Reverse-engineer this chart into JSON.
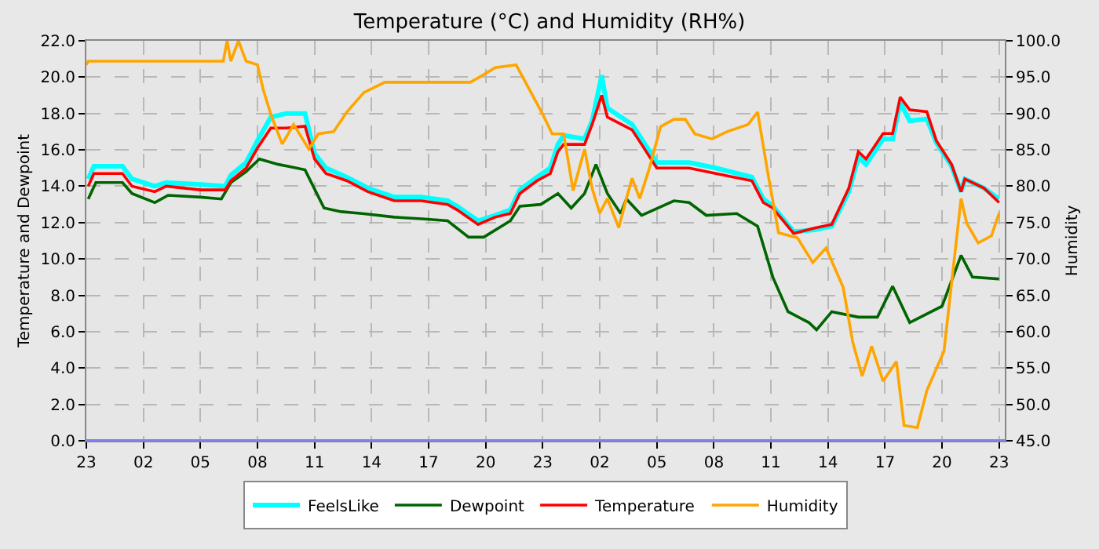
{
  "chart_data": {
    "type": "line",
    "title": "Temperature (°C) and Humidity (RH%)",
    "ylabel": "Temperature and Dewpoint",
    "y2label": "Humidity",
    "xlim": [
      "--01-01T23:00",
      "--01-03T23:18"
    ],
    "xticks": [
      {
        "value": "--01-01T23:00",
        "label": "23"
      },
      {
        "value": "--01-02T02:00",
        "label": "02"
      },
      {
        "value": "--01-02T05:00",
        "label": "05"
      },
      {
        "value": "--01-02T08:00",
        "label": "08"
      },
      {
        "value": "--01-02T11:00",
        "label": "11"
      },
      {
        "value": "--01-02T14:00",
        "label": "14"
      },
      {
        "value": "--01-02T17:00",
        "label": "17"
      },
      {
        "value": "--01-02T20:00",
        "label": "20"
      },
      {
        "value": "--01-02T23:00",
        "label": "23"
      },
      {
        "value": "--01-03T02:00",
        "label": "02"
      },
      {
        "value": "--01-03T05:00",
        "label": "05"
      },
      {
        "value": "--01-03T08:00",
        "label": "08"
      },
      {
        "value": "--01-03T11:00",
        "label": "11"
      },
      {
        "value": "--01-03T14:00",
        "label": "14"
      },
      {
        "value": "--01-03T17:00",
        "label": "17"
      },
      {
        "value": "--01-03T20:00",
        "label": "20"
      },
      {
        "value": "--01-03T23:00",
        "label": "23"
      }
    ],
    "ylim": [
      0,
      22
    ],
    "yticks": [
      {
        "value": 0,
        "label": "0.0"
      },
      {
        "value": 2,
        "label": "2.0"
      },
      {
        "value": 4,
        "label": "4.0"
      },
      {
        "value": 6,
        "label": "6.0"
      },
      {
        "value": 8,
        "label": "8.0"
      },
      {
        "value": 10,
        "label": "10.0"
      },
      {
        "value": 12,
        "label": "12.0"
      },
      {
        "value": 14,
        "label": "14.0"
      },
      {
        "value": 16,
        "label": "16.0"
      },
      {
        "value": 18,
        "label": "18.0"
      },
      {
        "value": 20,
        "label": "20.0"
      },
      {
        "value": 22,
        "label": "22.0"
      }
    ],
    "y2lim": [
      45,
      100
    ],
    "y2ticks": [
      {
        "value": 45,
        "label": "45.0"
      },
      {
        "value": 50,
        "label": "50.0"
      },
      {
        "value": 55,
        "label": "55.0"
      },
      {
        "value": 60,
        "label": "60.0"
      },
      {
        "value": 65,
        "label": "65.0"
      },
      {
        "value": 70,
        "label": "70.0"
      },
      {
        "value": 75,
        "label": "75.0"
      },
      {
        "value": 80,
        "label": "80.0"
      },
      {
        "value": 85,
        "label": "85.0"
      },
      {
        "value": 90,
        "label": "90.0"
      },
      {
        "value": 95,
        "label": "95.0"
      },
      {
        "value": 100,
        "label": "100.0"
      }
    ],
    "grid": true,
    "legend": "bottom",
    "marker": "none",
    "line_style": "solid",
    "ref_lines": [
      {
        "axis": "y",
        "value": 0,
        "color": "#7f7fff"
      }
    ],
    "series": [
      {
        "name": "FeelsLike",
        "color": "#00ffff",
        "x": [
          "--01-01T23:06",
          "--01-01T23:24",
          "--01-02T00:54",
          "--01-02T01:24",
          "--01-02T02:36",
          "--01-02T03:12",
          "--01-02T05:00",
          "--01-02T06:18",
          "--01-02T06:36",
          "--01-02T07:24",
          "--01-02T08:00",
          "--01-02T08:42",
          "--01-02T09:30",
          "--01-02T10:30",
          "--01-02T11:00",
          "--01-02T11:36",
          "--01-02T12:42",
          "--01-02T13:48",
          "--01-02T15:12",
          "--01-02T16:36",
          "--01-02T18:00",
          "--01-02T18:30",
          "--01-02T19:36",
          "--01-02T20:30",
          "--01-02T21:18",
          "--01-02T21:48",
          "--01-02T22:42",
          "--01-02T23:24",
          "--01-02T23:48",
          "--01-03T00:06",
          "--01-03T01:12",
          "--01-03T01:36",
          "--01-03T02:06",
          "--01-03T02:24",
          "--01-03T03:42",
          "--01-03T04:12",
          "--01-03T05:00",
          "--01-03T06:42",
          "--01-03T08:06",
          "--01-03T10:00",
          "--01-03T10:36",
          "--01-03T11:06",
          "--01-03T12:12",
          "--01-03T13:18",
          "--01-03T14:12",
          "--01-03T15:06",
          "--01-03T15:36",
          "--01-03T16:00",
          "--01-03T16:54",
          "--01-03T17:24",
          "--01-03T17:48",
          "--01-03T18:18",
          "--01-03T19:12",
          "--01-03T19:42",
          "--01-03T20:30",
          "--01-03T21:00",
          "--01-03T21:12",
          "--01-03T22:12",
          "--01-03T23:00"
        ],
        "values": [
          14.4,
          15.1,
          15.1,
          14.4,
          14.0,
          14.2,
          14.1,
          14.0,
          14.6,
          15.3,
          16.5,
          17.8,
          18.0,
          18.0,
          15.8,
          15.0,
          14.5,
          13.9,
          13.4,
          13.4,
          13.2,
          12.9,
          12.1,
          12.4,
          12.7,
          13.8,
          14.5,
          15.0,
          16.3,
          16.8,
          16.6,
          17.6,
          20.1,
          18.3,
          17.4,
          16.6,
          15.3,
          15.3,
          15.0,
          14.5,
          13.3,
          12.9,
          11.5,
          11.6,
          11.8,
          13.7,
          15.6,
          15.2,
          16.6,
          16.6,
          18.6,
          17.6,
          17.7,
          16.4,
          15.1,
          13.7,
          14.4,
          13.9,
          13.3
        ]
      },
      {
        "name": "Dewpoint",
        "color": "#006400",
        "x": [
          "--01-01T23:06",
          "--01-01T23:30",
          "--01-02T00:54",
          "--01-02T01:24",
          "--01-02T02:36",
          "--01-02T03:18",
          "--01-02T05:00",
          "--01-02T06:06",
          "--01-02T06:36",
          "--01-02T07:24",
          "--01-02T08:06",
          "--01-02T09:06",
          "--01-02T09:36",
          "--01-02T10:30",
          "--01-02T11:30",
          "--01-02T12:24",
          "--01-02T13:30",
          "--01-02T15:12",
          "--01-02T16:48",
          "--01-02T18:00",
          "--01-02T19:06",
          "--01-02T19:54",
          "--01-02T21:18",
          "--01-02T21:48",
          "--01-02T22:54",
          "--01-02T23:48",
          "--01-03T00:30",
          "--01-03T01:12",
          "--01-03T01:48",
          "--01-03T02:24",
          "--01-03T03:06",
          "--01-03T03:24",
          "--01-03T04:12",
          "--01-03T05:54",
          "--01-03T06:42",
          "--01-03T07:36",
          "--01-03T09:12",
          "--01-03T10:18",
          "--01-03T11:06",
          "--01-03T11:54",
          "--01-03T13:00",
          "--01-03T13:24",
          "--01-03T14:12",
          "--01-03T15:36",
          "--01-03T16:36",
          "--01-03T17:24",
          "--01-03T18:18",
          "--01-03T20:00",
          "--01-03T21:00",
          "--01-03T21:36",
          "--01-03T23:00"
        ],
        "values": [
          13.3,
          14.2,
          14.2,
          13.6,
          13.1,
          13.5,
          13.4,
          13.3,
          14.2,
          14.8,
          15.5,
          15.2,
          15.1,
          14.9,
          12.8,
          12.6,
          12.5,
          12.3,
          12.2,
          12.1,
          11.2,
          11.2,
          12.1,
          12.9,
          13.0,
          13.6,
          12.8,
          13.6,
          15.2,
          13.6,
          12.5,
          13.3,
          12.4,
          13.2,
          13.1,
          12.4,
          12.5,
          11.8,
          9.0,
          7.1,
          6.5,
          6.1,
          7.1,
          6.8,
          6.8,
          8.5,
          6.5,
          7.4,
          10.2,
          9.0,
          8.9
        ]
      },
      {
        "name": "Temperature",
        "color": "#ff0000",
        "x": [
          "--01-01T23:06",
          "--01-01T23:24",
          "--01-02T00:54",
          "--01-02T01:24",
          "--01-02T02:36",
          "--01-02T03:12",
          "--01-02T05:00",
          "--01-02T06:18",
          "--01-02T06:36",
          "--01-02T07:24",
          "--01-02T08:00",
          "--01-02T08:42",
          "--01-02T09:30",
          "--01-02T10:30",
          "--01-02T11:00",
          "--01-02T11:36",
          "--01-02T12:42",
          "--01-02T13:48",
          "--01-02T15:12",
          "--01-02T16:36",
          "--01-02T18:00",
          "--01-02T18:30",
          "--01-02T19:36",
          "--01-02T20:30",
          "--01-02T21:18",
          "--01-02T21:48",
          "--01-02T22:42",
          "--01-02T23:24",
          "--01-02T23:48",
          "--01-03T00:06",
          "--01-03T01:12",
          "--01-03T01:36",
          "--01-03T02:06",
          "--01-03T02:24",
          "--01-03T03:42",
          "--01-03T04:12",
          "--01-03T05:00",
          "--01-03T06:42",
          "--01-03T08:06",
          "--01-03T10:00",
          "--01-03T10:36",
          "--01-03T11:06",
          "--01-03T12:12",
          "--01-03T13:18",
          "--01-03T14:12",
          "--01-03T15:06",
          "--01-03T15:36",
          "--01-03T16:00",
          "--01-03T16:54",
          "--01-03T17:24",
          "--01-03T17:48",
          "--01-03T18:18",
          "--01-03T19:12",
          "--01-03T19:42",
          "--01-03T20:30",
          "--01-03T21:00",
          "--01-03T21:12",
          "--01-03T22:12",
          "--01-03T23:00"
        ],
        "values": [
          14.0,
          14.7,
          14.7,
          14.0,
          13.7,
          14.0,
          13.8,
          13.8,
          14.3,
          15.0,
          16.1,
          17.2,
          17.2,
          17.3,
          15.5,
          14.7,
          14.3,
          13.7,
          13.2,
          13.2,
          13.0,
          12.7,
          11.9,
          12.3,
          12.5,
          13.6,
          14.3,
          14.7,
          15.9,
          16.3,
          16.3,
          17.4,
          19.0,
          17.8,
          17.1,
          16.3,
          15.0,
          15.0,
          14.7,
          14.3,
          13.1,
          12.8,
          11.4,
          11.7,
          11.9,
          13.9,
          15.9,
          15.5,
          16.9,
          16.9,
          18.9,
          18.2,
          18.1,
          16.5,
          15.2,
          13.7,
          14.4,
          13.9,
          13.1
        ]
      },
      {
        "name": "Humidity",
        "color": "#ffa500",
        "axis": "y2",
        "x": [
          "--01-01T23:00",
          "--01-01T23:06",
          "--01-02T06:12",
          "--01-02T06:24",
          "--01-02T06:36",
          "--01-02T07:00",
          "--01-02T07:24",
          "--01-02T08:00",
          "--01-02T08:18",
          "--01-02T08:42",
          "--01-02T09:18",
          "--01-02T09:54",
          "--01-02T10:42",
          "--01-02T11:12",
          "--01-02T12:00",
          "--01-02T12:42",
          "--01-02T13:36",
          "--01-02T14:42",
          "--01-02T19:12",
          "--01-02T19:48",
          "--01-02T20:30",
          "--01-02T21:36",
          "--01-02T22:18",
          "--01-02T23:00",
          "--01-02T23:30",
          "--01-03T00:06",
          "--01-03T00:36",
          "--01-03T01:12",
          "--01-03T01:36",
          "--01-03T02:00",
          "--01-03T02:24",
          "--01-03T03:00",
          "--01-03T03:24",
          "--01-03T03:42",
          "--01-03T04:06",
          "--01-03T04:36",
          "--01-03T05:12",
          "--01-03T05:54",
          "--01-03T06:30",
          "--01-03T07:00",
          "--01-03T07:54",
          "--01-03T08:42",
          "--01-03T09:48",
          "--01-03T10:18",
          "--01-03T10:48",
          "--01-03T11:24",
          "--01-03T12:24",
          "--01-03T13:12",
          "--01-03T13:54",
          "--01-03T14:48",
          "--01-03T15:18",
          "--01-03T15:48",
          "--01-03T16:18",
          "--01-03T16:54",
          "--01-03T17:36",
          "--01-03T18:00",
          "--01-03T18:42",
          "--01-03T19:12",
          "--01-03T20:06",
          "--01-03T21:00",
          "--01-03T21:18",
          "--01-03T21:54",
          "--01-03T22:36",
          "--01-03T23:00"
        ],
        "values": [
          96.7,
          97.2,
          97.2,
          100,
          97.2,
          100,
          97.2,
          96.7,
          93.3,
          89.9,
          85.8,
          88.5,
          85.1,
          87.2,
          87.5,
          90.2,
          92.9,
          94.3,
          94.3,
          95.2,
          96.3,
          96.7,
          93.3,
          89.9,
          87.2,
          87.2,
          79.4,
          85.1,
          79.7,
          76.3,
          78.3,
          74.3,
          78.3,
          81.1,
          78.3,
          82.4,
          88.2,
          89.2,
          89.2,
          87.2,
          86.5,
          87.5,
          88.5,
          90.2,
          82.4,
          73.6,
          72.9,
          69.5,
          71.5,
          66.1,
          58.6,
          53.9,
          58.0,
          53.2,
          55.9,
          47.1,
          46.8,
          51.9,
          57.3,
          78.3,
          74.9,
          72.2,
          73.2,
          76.3
        ]
      }
    ]
  }
}
